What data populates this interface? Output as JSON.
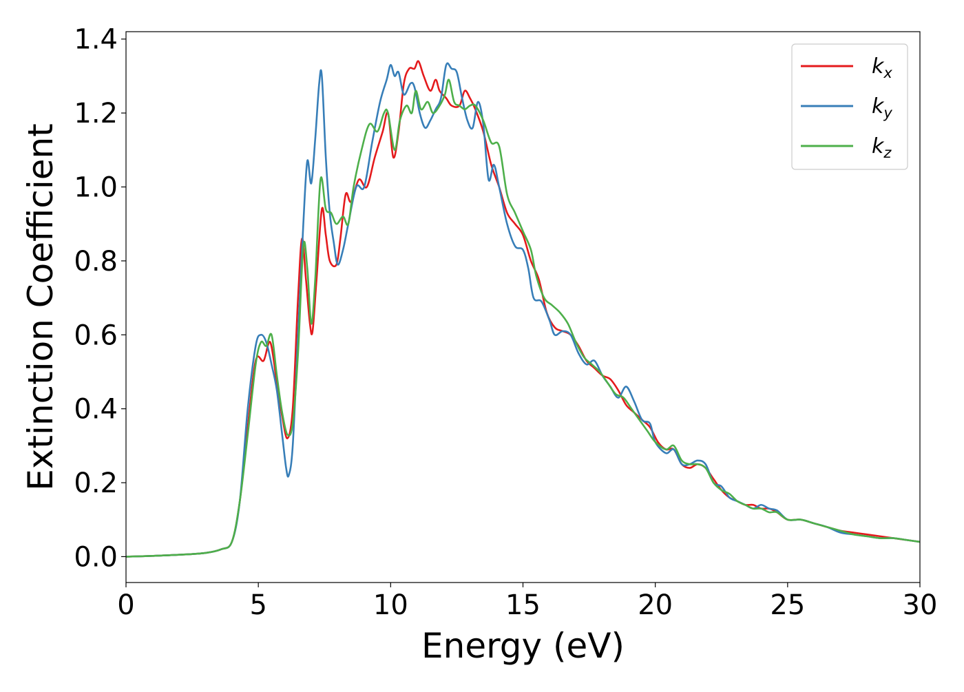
{
  "colors": {
    "kx": "#e41a1c",
    "ky": "#377eb8",
    "kz": "#4daf4a"
  },
  "chart_data": {
    "type": "line",
    "title": "",
    "xlabel": "Energy (eV)",
    "ylabel": "Extinction Coefficient",
    "xlim": [
      0,
      30
    ],
    "ylim": [
      -0.07,
      1.42
    ],
    "xticks": [
      0,
      5,
      10,
      15,
      20,
      25,
      30
    ],
    "xtick_labels": [
      "0",
      "5",
      "10",
      "15",
      "20",
      "25",
      "30"
    ],
    "yticks": [
      0.0,
      0.2,
      0.4,
      0.6,
      0.8,
      1.0,
      1.2,
      1.4
    ],
    "ytick_labels": [
      "0.0",
      "0.2",
      "0.4",
      "0.6",
      "0.8",
      "1.0",
      "1.2",
      "1.4"
    ],
    "grid": false,
    "legend_position": "top-right",
    "series": [
      {
        "name": "k_x",
        "label_base": "k",
        "label_sub": "x",
        "color_key": "kx",
        "points": [
          [
            0,
            0.0
          ],
          [
            1,
            0.002
          ],
          [
            2,
            0.005
          ],
          [
            3,
            0.01
          ],
          [
            3.6,
            0.02
          ],
          [
            4.0,
            0.04
          ],
          [
            4.3,
            0.15
          ],
          [
            4.6,
            0.35
          ],
          [
            4.9,
            0.53
          ],
          [
            5.2,
            0.53
          ],
          [
            5.45,
            0.58
          ],
          [
            5.7,
            0.47
          ],
          [
            5.9,
            0.38
          ],
          [
            6.1,
            0.32
          ],
          [
            6.3,
            0.4
          ],
          [
            6.5,
            0.7
          ],
          [
            6.65,
            0.86
          ],
          [
            6.8,
            0.75
          ],
          [
            6.95,
            0.63
          ],
          [
            7.05,
            0.61
          ],
          [
            7.2,
            0.75
          ],
          [
            7.4,
            0.94
          ],
          [
            7.55,
            0.87
          ],
          [
            7.7,
            0.8
          ],
          [
            7.95,
            0.79
          ],
          [
            8.1,
            0.86
          ],
          [
            8.3,
            0.98
          ],
          [
            8.5,
            0.96
          ],
          [
            8.8,
            1.02
          ],
          [
            9.1,
            1.0
          ],
          [
            9.4,
            1.08
          ],
          [
            9.7,
            1.15
          ],
          [
            9.9,
            1.2
          ],
          [
            10.1,
            1.08
          ],
          [
            10.3,
            1.15
          ],
          [
            10.5,
            1.28
          ],
          [
            10.7,
            1.32
          ],
          [
            10.9,
            1.32
          ],
          [
            11.05,
            1.34
          ],
          [
            11.25,
            1.3
          ],
          [
            11.5,
            1.26
          ],
          [
            11.7,
            1.29
          ],
          [
            11.85,
            1.26
          ],
          [
            12.1,
            1.24
          ],
          [
            12.3,
            1.22
          ],
          [
            12.6,
            1.22
          ],
          [
            12.8,
            1.26
          ],
          [
            13.0,
            1.24
          ],
          [
            13.2,
            1.21
          ],
          [
            13.5,
            1.15
          ],
          [
            13.8,
            1.06
          ],
          [
            14.1,
            1.0
          ],
          [
            14.4,
            0.93
          ],
          [
            14.7,
            0.9
          ],
          [
            15.0,
            0.87
          ],
          [
            15.3,
            0.8
          ],
          [
            15.6,
            0.75
          ],
          [
            15.9,
            0.66
          ],
          [
            16.2,
            0.62
          ],
          [
            16.5,
            0.61
          ],
          [
            16.8,
            0.6
          ],
          [
            17.1,
            0.57
          ],
          [
            17.4,
            0.53
          ],
          [
            17.7,
            0.51
          ],
          [
            18.0,
            0.49
          ],
          [
            18.3,
            0.48
          ],
          [
            18.6,
            0.45
          ],
          [
            18.9,
            0.41
          ],
          [
            19.2,
            0.39
          ],
          [
            19.5,
            0.37
          ],
          [
            19.8,
            0.35
          ],
          [
            20.1,
            0.31
          ],
          [
            20.4,
            0.29
          ],
          [
            20.7,
            0.29
          ],
          [
            21.0,
            0.25
          ],
          [
            21.3,
            0.24
          ],
          [
            21.6,
            0.25
          ],
          [
            21.9,
            0.24
          ],
          [
            22.2,
            0.21
          ],
          [
            22.5,
            0.18
          ],
          [
            22.8,
            0.16
          ],
          [
            23.1,
            0.15
          ],
          [
            23.4,
            0.14
          ],
          [
            23.7,
            0.14
          ],
          [
            24.0,
            0.13
          ],
          [
            24.3,
            0.13
          ],
          [
            24.6,
            0.12
          ],
          [
            25.0,
            0.1
          ],
          [
            25.5,
            0.1
          ],
          [
            26.0,
            0.09
          ],
          [
            26.5,
            0.08
          ],
          [
            27.0,
            0.07
          ],
          [
            27.5,
            0.065
          ],
          [
            28.0,
            0.06
          ],
          [
            28.5,
            0.055
          ],
          [
            29.0,
            0.05
          ],
          [
            29.5,
            0.045
          ],
          [
            30.0,
            0.04
          ]
        ]
      },
      {
        "name": "k_y",
        "label_base": "k",
        "label_sub": "y",
        "color_key": "ky",
        "points": [
          [
            0,
            0.0
          ],
          [
            1,
            0.002
          ],
          [
            2,
            0.005
          ],
          [
            3,
            0.01
          ],
          [
            3.6,
            0.02
          ],
          [
            4.0,
            0.04
          ],
          [
            4.3,
            0.15
          ],
          [
            4.6,
            0.4
          ],
          [
            4.9,
            0.57
          ],
          [
            5.1,
            0.6
          ],
          [
            5.3,
            0.58
          ],
          [
            5.5,
            0.52
          ],
          [
            5.7,
            0.45
          ],
          [
            5.9,
            0.33
          ],
          [
            6.05,
            0.24
          ],
          [
            6.15,
            0.22
          ],
          [
            6.3,
            0.3
          ],
          [
            6.5,
            0.6
          ],
          [
            6.7,
            0.9
          ],
          [
            6.85,
            1.07
          ],
          [
            7.0,
            1.01
          ],
          [
            7.15,
            1.13
          ],
          [
            7.3,
            1.28
          ],
          [
            7.4,
            1.3
          ],
          [
            7.55,
            1.08
          ],
          [
            7.7,
            0.93
          ],
          [
            7.85,
            0.85
          ],
          [
            8.0,
            0.79
          ],
          [
            8.2,
            0.83
          ],
          [
            8.4,
            0.9
          ],
          [
            8.7,
            1.0
          ],
          [
            9.0,
            1.0
          ],
          [
            9.3,
            1.12
          ],
          [
            9.6,
            1.23
          ],
          [
            9.85,
            1.29
          ],
          [
            10.0,
            1.33
          ],
          [
            10.15,
            1.3
          ],
          [
            10.3,
            1.31
          ],
          [
            10.5,
            1.25
          ],
          [
            10.75,
            1.28
          ],
          [
            10.9,
            1.27
          ],
          [
            11.1,
            1.2
          ],
          [
            11.3,
            1.16
          ],
          [
            11.5,
            1.18
          ],
          [
            11.7,
            1.21
          ],
          [
            11.9,
            1.24
          ],
          [
            12.1,
            1.33
          ],
          [
            12.3,
            1.32
          ],
          [
            12.5,
            1.31
          ],
          [
            12.7,
            1.24
          ],
          [
            12.9,
            1.18
          ],
          [
            13.1,
            1.16
          ],
          [
            13.3,
            1.23
          ],
          [
            13.5,
            1.17
          ],
          [
            13.7,
            1.02
          ],
          [
            13.9,
            1.06
          ],
          [
            14.1,
            1.0
          ],
          [
            14.4,
            0.9
          ],
          [
            14.7,
            0.84
          ],
          [
            15.0,
            0.83
          ],
          [
            15.2,
            0.78
          ],
          [
            15.4,
            0.7
          ],
          [
            15.7,
            0.69
          ],
          [
            16.0,
            0.64
          ],
          [
            16.2,
            0.6
          ],
          [
            16.5,
            0.61
          ],
          [
            16.8,
            0.6
          ],
          [
            17.1,
            0.55
          ],
          [
            17.4,
            0.52
          ],
          [
            17.7,
            0.53
          ],
          [
            18.0,
            0.49
          ],
          [
            18.3,
            0.46
          ],
          [
            18.6,
            0.43
          ],
          [
            18.9,
            0.46
          ],
          [
            19.2,
            0.42
          ],
          [
            19.5,
            0.37
          ],
          [
            19.8,
            0.36
          ],
          [
            20.0,
            0.31
          ],
          [
            20.4,
            0.28
          ],
          [
            20.7,
            0.29
          ],
          [
            21.0,
            0.25
          ],
          [
            21.3,
            0.25
          ],
          [
            21.6,
            0.26
          ],
          [
            21.9,
            0.25
          ],
          [
            22.2,
            0.2
          ],
          [
            22.5,
            0.19
          ],
          [
            22.8,
            0.16
          ],
          [
            23.1,
            0.15
          ],
          [
            23.4,
            0.14
          ],
          [
            23.7,
            0.13
          ],
          [
            24.0,
            0.14
          ],
          [
            24.3,
            0.13
          ],
          [
            24.6,
            0.125
          ],
          [
            25.0,
            0.1
          ],
          [
            25.5,
            0.1
          ],
          [
            26.0,
            0.09
          ],
          [
            26.5,
            0.08
          ],
          [
            27.0,
            0.065
          ],
          [
            27.5,
            0.06
          ],
          [
            28.0,
            0.055
          ],
          [
            28.5,
            0.05
          ],
          [
            29.0,
            0.05
          ],
          [
            29.5,
            0.045
          ],
          [
            30.0,
            0.04
          ]
        ]
      },
      {
        "name": "k_z",
        "label_base": "k",
        "label_sub": "z",
        "color_key": "kz",
        "points": [
          [
            0,
            0.0
          ],
          [
            1,
            0.002
          ],
          [
            2,
            0.005
          ],
          [
            3,
            0.01
          ],
          [
            3.6,
            0.02
          ],
          [
            4.0,
            0.04
          ],
          [
            4.3,
            0.15
          ],
          [
            4.6,
            0.33
          ],
          [
            4.9,
            0.52
          ],
          [
            5.1,
            0.58
          ],
          [
            5.3,
            0.57
          ],
          [
            5.5,
            0.6
          ],
          [
            5.7,
            0.49
          ],
          [
            5.9,
            0.39
          ],
          [
            6.1,
            0.33
          ],
          [
            6.3,
            0.36
          ],
          [
            6.5,
            0.55
          ],
          [
            6.7,
            0.84
          ],
          [
            6.85,
            0.78
          ],
          [
            7.0,
            0.63
          ],
          [
            7.15,
            0.75
          ],
          [
            7.35,
            1.02
          ],
          [
            7.55,
            0.94
          ],
          [
            7.75,
            0.93
          ],
          [
            7.95,
            0.9
          ],
          [
            8.2,
            0.92
          ],
          [
            8.4,
            0.9
          ],
          [
            8.6,
            1.0
          ],
          [
            8.9,
            1.1
          ],
          [
            9.2,
            1.17
          ],
          [
            9.5,
            1.15
          ],
          [
            9.75,
            1.2
          ],
          [
            9.9,
            1.2
          ],
          [
            10.15,
            1.1
          ],
          [
            10.35,
            1.18
          ],
          [
            10.6,
            1.22
          ],
          [
            10.8,
            1.2
          ],
          [
            10.95,
            1.26
          ],
          [
            11.15,
            1.21
          ],
          [
            11.4,
            1.23
          ],
          [
            11.6,
            1.2
          ],
          [
            11.85,
            1.22
          ],
          [
            12.05,
            1.25
          ],
          [
            12.2,
            1.29
          ],
          [
            12.4,
            1.23
          ],
          [
            12.6,
            1.22
          ],
          [
            12.8,
            1.21
          ],
          [
            13.0,
            1.22
          ],
          [
            13.2,
            1.22
          ],
          [
            13.5,
            1.18
          ],
          [
            13.8,
            1.12
          ],
          [
            14.1,
            1.11
          ],
          [
            14.4,
            0.98
          ],
          [
            14.7,
            0.93
          ],
          [
            15.0,
            0.88
          ],
          [
            15.3,
            0.83
          ],
          [
            15.5,
            0.76
          ],
          [
            15.8,
            0.7
          ],
          [
            16.1,
            0.68
          ],
          [
            16.4,
            0.66
          ],
          [
            16.7,
            0.63
          ],
          [
            17.0,
            0.58
          ],
          [
            17.3,
            0.54
          ],
          [
            17.6,
            0.52
          ],
          [
            17.9,
            0.5
          ],
          [
            18.2,
            0.47
          ],
          [
            18.5,
            0.44
          ],
          [
            18.8,
            0.43
          ],
          [
            19.1,
            0.4
          ],
          [
            19.4,
            0.37
          ],
          [
            19.7,
            0.34
          ],
          [
            20.0,
            0.31
          ],
          [
            20.4,
            0.29
          ],
          [
            20.7,
            0.3
          ],
          [
            21.0,
            0.26
          ],
          [
            21.3,
            0.25
          ],
          [
            21.6,
            0.25
          ],
          [
            21.9,
            0.24
          ],
          [
            22.2,
            0.2
          ],
          [
            22.5,
            0.18
          ],
          [
            22.8,
            0.17
          ],
          [
            23.1,
            0.15
          ],
          [
            23.4,
            0.14
          ],
          [
            23.7,
            0.13
          ],
          [
            24.0,
            0.13
          ],
          [
            24.3,
            0.12
          ],
          [
            24.6,
            0.12
          ],
          [
            25.0,
            0.1
          ],
          [
            25.5,
            0.1
          ],
          [
            26.0,
            0.09
          ],
          [
            26.5,
            0.08
          ],
          [
            27.0,
            0.07
          ],
          [
            27.5,
            0.06
          ],
          [
            28.0,
            0.055
          ],
          [
            28.5,
            0.05
          ],
          [
            29.0,
            0.05
          ],
          [
            29.5,
            0.045
          ],
          [
            30.0,
            0.04
          ]
        ]
      }
    ]
  }
}
